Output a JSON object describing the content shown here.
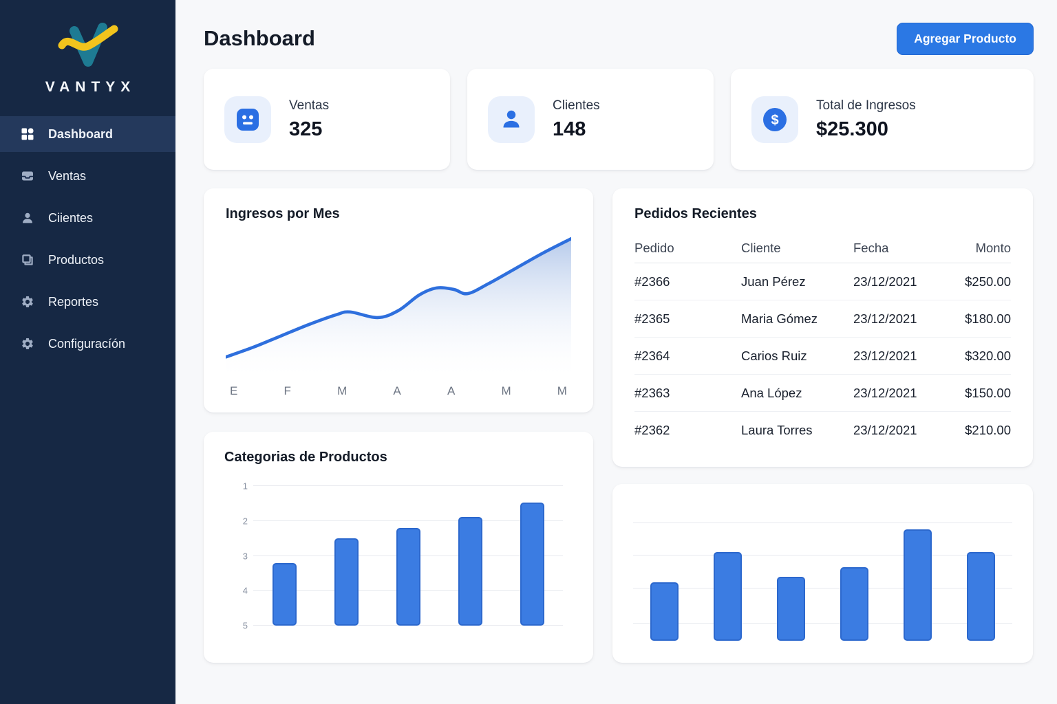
{
  "brand": {
    "name": "VANTYX"
  },
  "sidebar": {
    "items": [
      {
        "label": "Dashboard",
        "icon": "grid",
        "active": true
      },
      {
        "label": "Ventas",
        "icon": "inbox",
        "active": false
      },
      {
        "label": "Ciientes",
        "icon": "user",
        "active": false
      },
      {
        "label": "Productos",
        "icon": "box",
        "active": false
      },
      {
        "label": "Reportes",
        "icon": "gear",
        "active": false
      },
      {
        "label": "Configuracíón",
        "icon": "gear",
        "active": false
      }
    ]
  },
  "header": {
    "title": "Dashboard",
    "add_product_label": "Agregar Producto"
  },
  "stats": [
    {
      "label": "Ventas",
      "value": "325",
      "icon": "terminal"
    },
    {
      "label": "Clientes",
      "value": "148",
      "icon": "person"
    },
    {
      "label": "Total de Ingresos",
      "value": "$25.300",
      "icon": "dollar"
    }
  ],
  "orders": {
    "title": "Pedidos Recientes",
    "columns": [
      "Pedido",
      "Cliente",
      "Fecha",
      "Monto"
    ],
    "rows": [
      [
        "#2366",
        "Juan Pérez",
        "23/12/2021",
        "$250.00"
      ],
      [
        "#2365",
        "Maria Gómez",
        "23/12/2021",
        "$180.00"
      ],
      [
        "#2364",
        "Carios Ruiz",
        "23/12/2021",
        "$320.00"
      ],
      [
        "#2363",
        "Ana López",
        "23/12/2021",
        "$150.00"
      ],
      [
        "#2362",
        "Laura Torres",
        "23/12/2021",
        "$210.00"
      ]
    ]
  },
  "chart_data": [
    {
      "type": "area",
      "title": "Ingresos por Mes",
      "x_labels": [
        "E",
        "F",
        "M",
        "A",
        "A",
        "M",
        "M"
      ],
      "ylabel": "",
      "points_pct_x_ybottom": [
        [
          0,
          13
        ],
        [
          8,
          20
        ],
        [
          16,
          28
        ],
        [
          24,
          36
        ],
        [
          32,
          43
        ],
        [
          36,
          45
        ],
        [
          44,
          41
        ],
        [
          50,
          46
        ],
        [
          56,
          57
        ],
        [
          61,
          62
        ],
        [
          66,
          61
        ],
        [
          70,
          58
        ],
        [
          76,
          65
        ],
        [
          84,
          76
        ],
        [
          92,
          87
        ],
        [
          100,
          97
        ]
      ],
      "line_color": "#2e6fdd",
      "fill_top_color": "#b3c8ea",
      "grid": false,
      "legend": false
    },
    {
      "type": "bar",
      "title": "Categorias de Productos",
      "y_axis_labels_top_to_bottom": [
        "1",
        "2",
        "3",
        "4",
        "5"
      ],
      "bar_heights_pct": [
        45,
        62.5,
        70,
        78,
        88
      ],
      "bar_top_values_on_axis": [
        3.2,
        2.5,
        2.2,
        1.9,
        1.5
      ],
      "bar_color": "#3b7ce2",
      "grid": true,
      "legend": false
    },
    {
      "type": "bar",
      "title": "",
      "categories": [
        "",
        "",
        "",
        "",
        "",
        ""
      ],
      "bar_heights_pct": [
        43,
        65,
        47,
        54,
        82,
        65
      ],
      "gridlines_pct_from_bottom": [
        12.5,
        38.5,
        62.5,
        86.5
      ],
      "bar_color": "#3b7ce2",
      "grid": true,
      "legend": false
    }
  ],
  "colors": {
    "accent": "#2b78e4",
    "sidebar_bg": "#162844",
    "sidebar_active": "#24395c",
    "bar_blue": "#3b7ce2",
    "line_blue": "#2e6fdd",
    "logo_teal": "#1e7b93",
    "logo_yellow": "#f2c41d"
  }
}
